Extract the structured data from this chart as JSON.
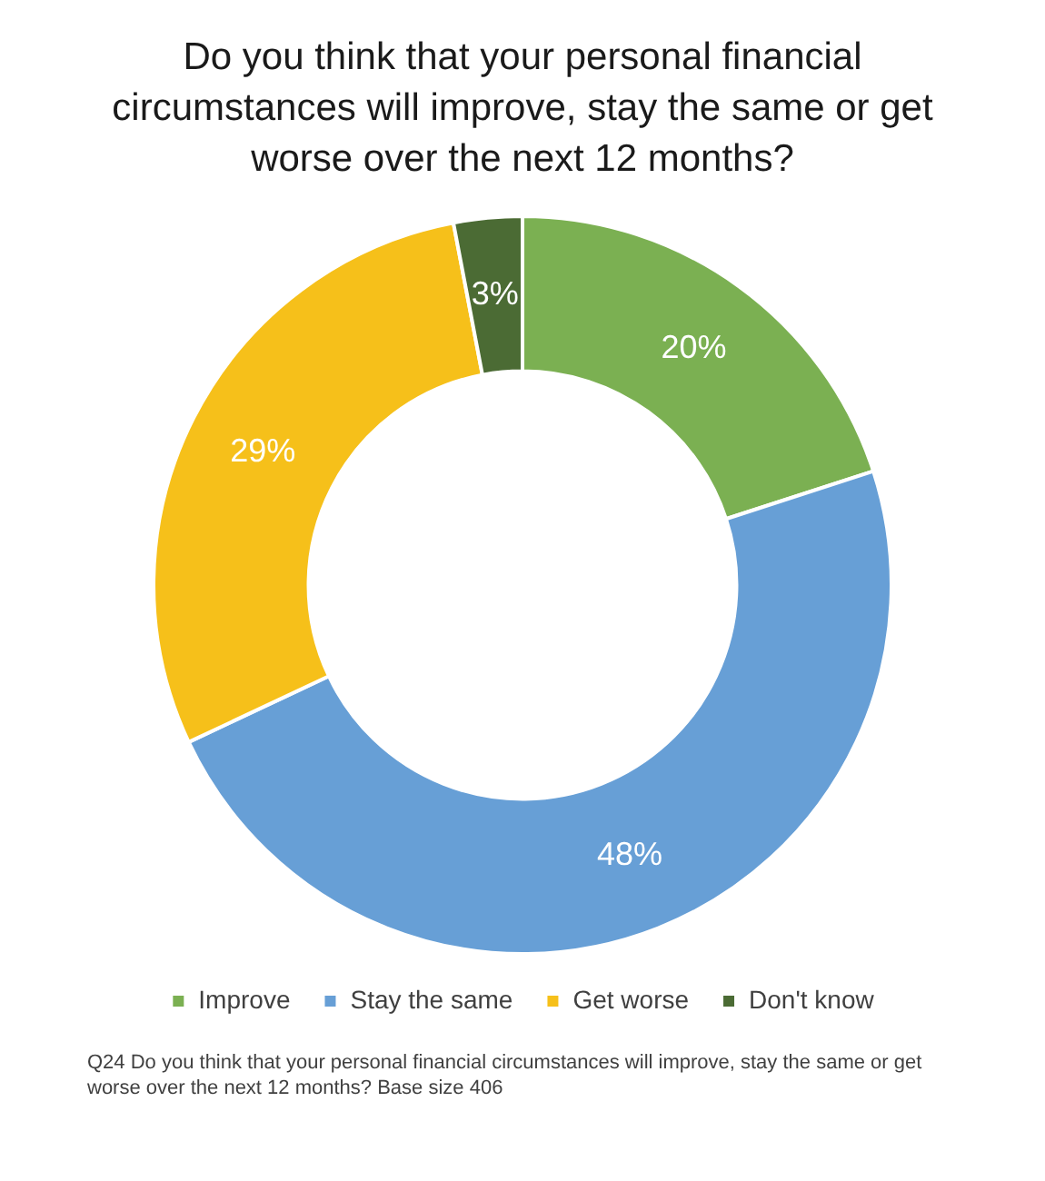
{
  "chart_data": {
    "type": "donut",
    "title": "Do you think that your personal financial circumstances will improve, stay the same or get worse over the next 12 months?",
    "categories": [
      "Improve",
      "Stay the same",
      "Get worse",
      "Don't know"
    ],
    "values": [
      20,
      48,
      29,
      3
    ],
    "colors": [
      "#7bb052",
      "#679fd6",
      "#f6c01a",
      "#4b6b34"
    ],
    "value_labels": [
      "20%",
      "48%",
      "29%",
      "3%"
    ],
    "legend": "bottom",
    "annotations": [
      "Q24 Do you think that your personal financial circumstances will improve, stay the same or get worse over the next 12 months? Base size 406"
    ]
  }
}
